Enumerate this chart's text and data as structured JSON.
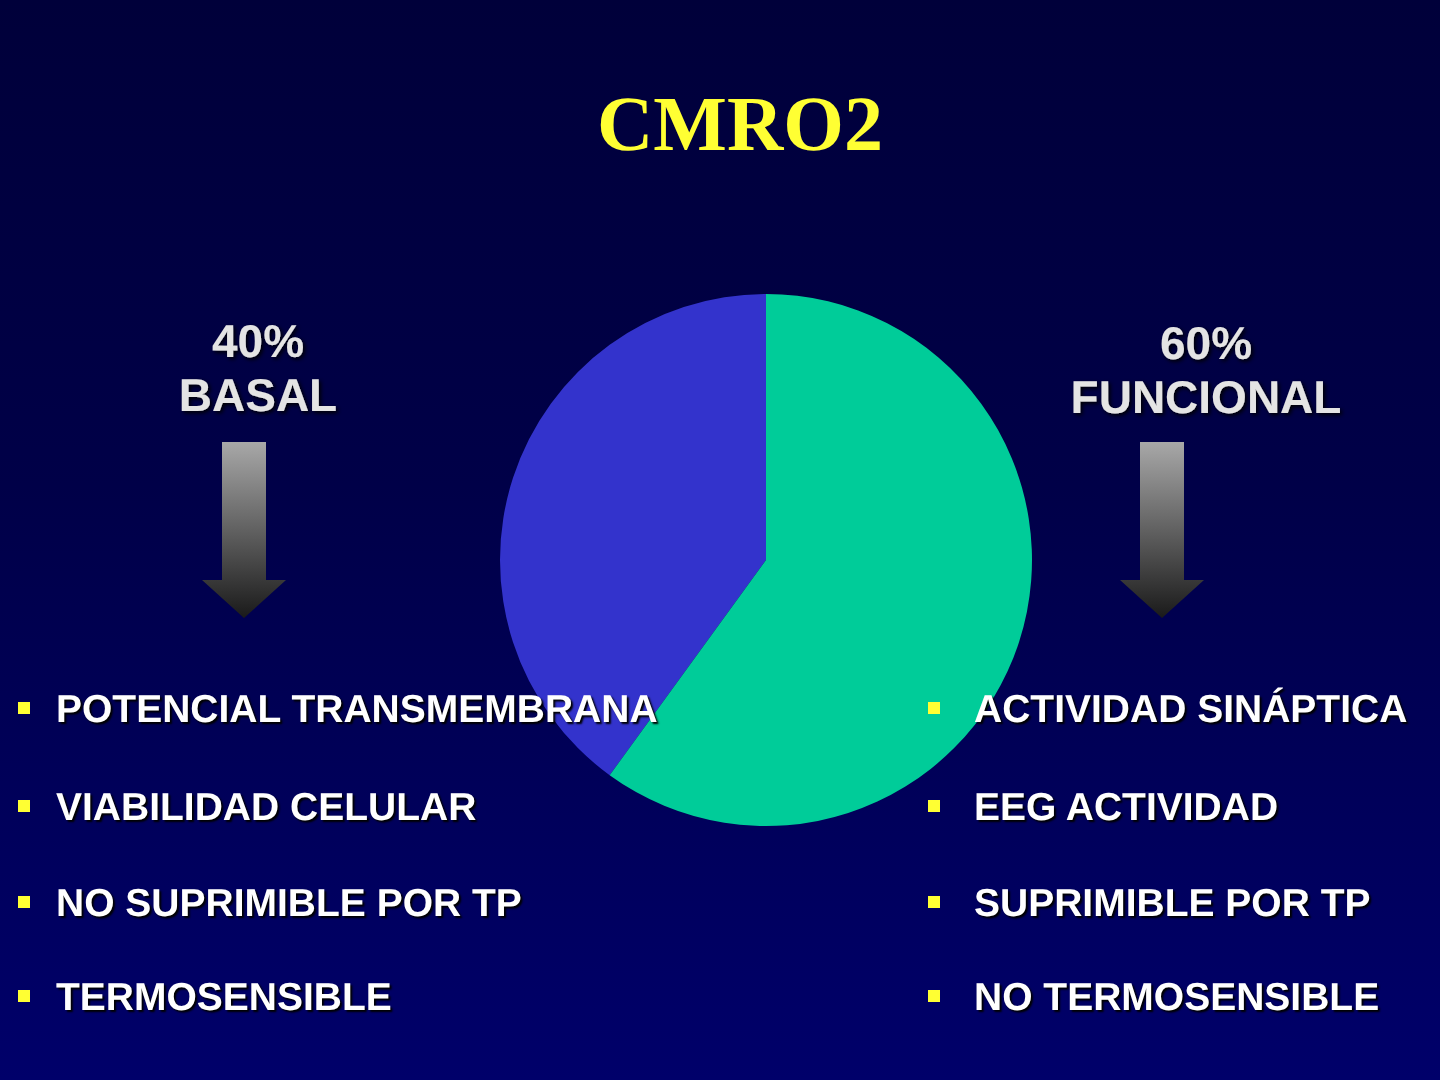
{
  "chart_data": {
    "type": "pie",
    "title": "CMRO2",
    "categories": [
      "BASAL",
      "FUNCIONAL"
    ],
    "values": [
      40,
      60
    ],
    "colors": [
      "#3333cc",
      "#00cc99"
    ],
    "value_labels": [
      "40%",
      "60%"
    ],
    "annotations": [
      "POTENCIAL TRANSMEMBRANA",
      "ACTIVIDAD SINÁPTICA",
      "VIABILIDAD CELULAR",
      "EEG ACTIVIDAD",
      "NO SUPRIMIBLE POR TP",
      "SUPRIMIBLE POR TP",
      "TERMOSENSIBLE",
      "NO TERMOSENSIBLE"
    ]
  }
}
